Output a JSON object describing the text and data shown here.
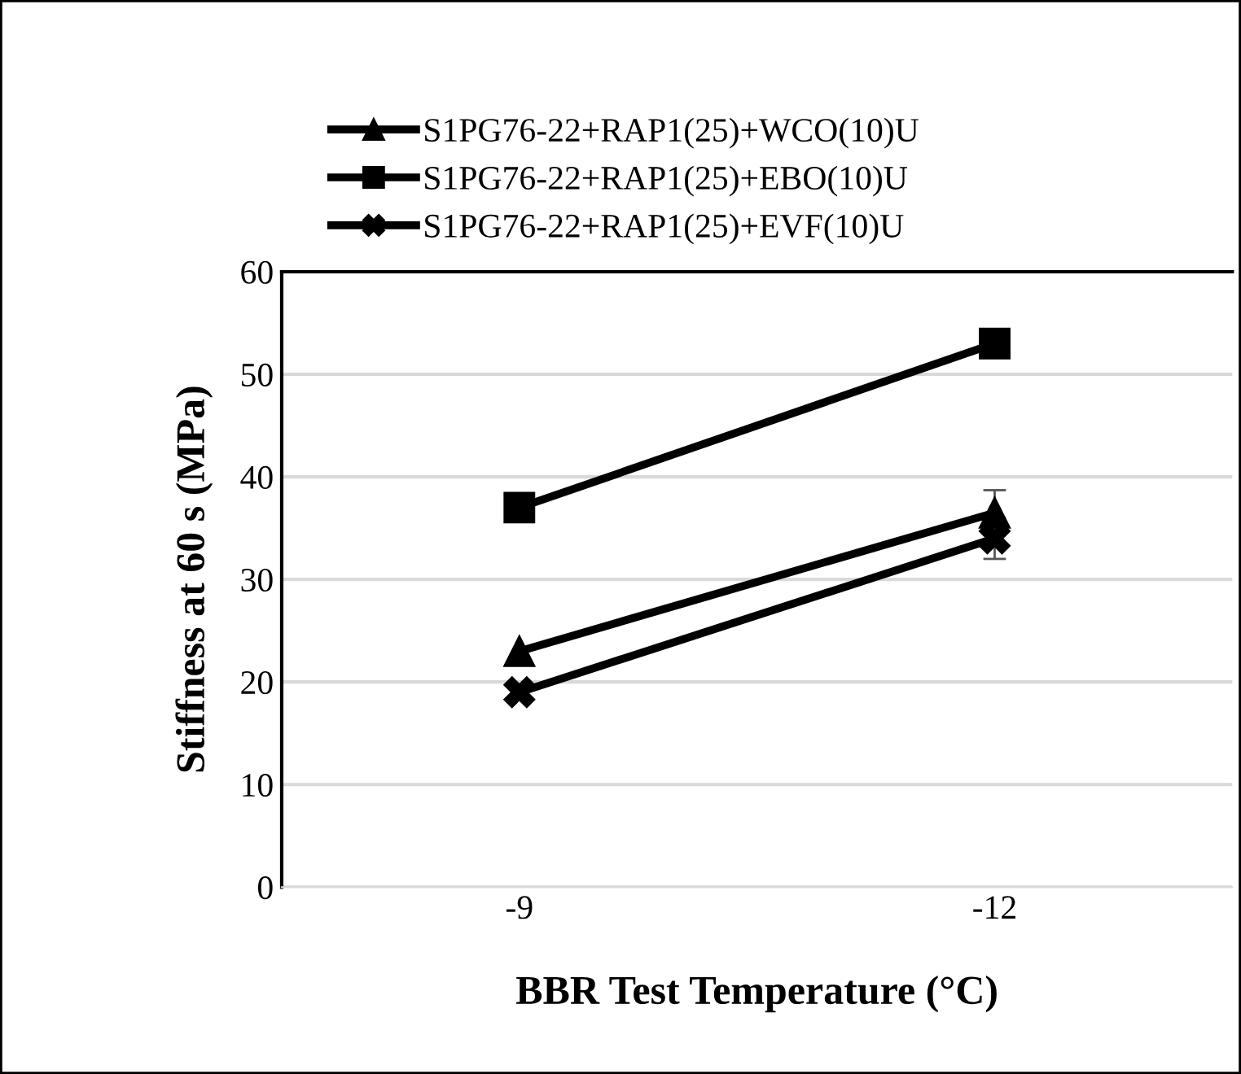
{
  "chart_data": {
    "type": "line",
    "xlabel": "BBR Test Temperature (°C)",
    "ylabel": "Stiffness at 60 s (MPa)",
    "categories": [
      "-9",
      "-12"
    ],
    "series": [
      {
        "name": "S1PG76-22+RAP1(25)+WCO(10)U",
        "color": "#000000",
        "marker": "triangle",
        "values": [
          23,
          36.5
        ],
        "errors": [
          null,
          2.2
        ]
      },
      {
        "name": "S1PG76-22+RAP1(25)+EBO(10)U",
        "color": "#000000",
        "marker": "square",
        "values": [
          37,
          53
        ]
      },
      {
        "name": "S1PG76-22+RAP1(25)+EVF(10)U",
        "color": "#000000",
        "marker": "cross",
        "values": [
          19,
          34
        ],
        "errors": [
          null,
          2
        ]
      }
    ],
    "ylim": [
      0,
      60
    ],
    "yticks": [
      0,
      10,
      20,
      30,
      40,
      50,
      60
    ],
    "grid": "y",
    "legend": "top",
    "line_style": "solid"
  }
}
